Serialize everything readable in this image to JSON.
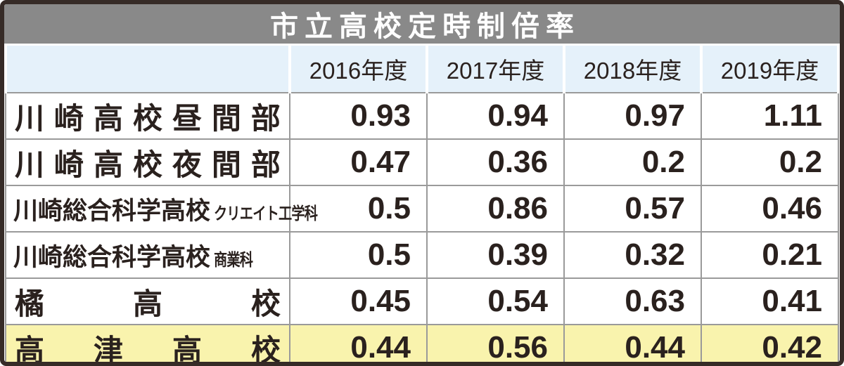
{
  "chart_data": {
    "type": "table",
    "title": "市立高校定時制倍率",
    "columns": [
      "2016年度",
      "2017年度",
      "2018年度",
      "2019年度"
    ],
    "rows": [
      {
        "name": "川崎高校昼間部",
        "dept": "",
        "values": [
          "0.93",
          "0.94",
          "0.97",
          "1.11"
        ]
      },
      {
        "name": "川崎高校夜間部",
        "dept": "",
        "values": [
          "0.47",
          "0.36",
          "0.2",
          "0.2"
        ]
      },
      {
        "name": "川崎総合科学高校",
        "dept": "クリエイト工学科",
        "values": [
          "0.5",
          "0.86",
          "0.57",
          "0.46"
        ]
      },
      {
        "name": "川崎総合科学高校",
        "dept": "商業科",
        "values": [
          "0.5",
          "0.39",
          "0.32",
          "0.21"
        ]
      },
      {
        "name": "橘高校",
        "dept": "",
        "values": [
          "0.45",
          "0.54",
          "0.63",
          "0.41"
        ]
      },
      {
        "name": "高津高校",
        "dept": "",
        "values": [
          "0.44",
          "0.56",
          "0.44",
          "0.42"
        ]
      }
    ],
    "highlight_row": "高津高校",
    "layout_hints": {
      "header_position": "top",
      "grid": true,
      "highlight": "last-row"
    }
  },
  "colors": {
    "border": "#362b27",
    "title_bg": "#898989",
    "title_text": "#ffffff",
    "header_bg": "#e5f1fa",
    "grid": "#9a9a9a",
    "highlight_bg": "#f9f3ad",
    "text": "#2a211e"
  }
}
